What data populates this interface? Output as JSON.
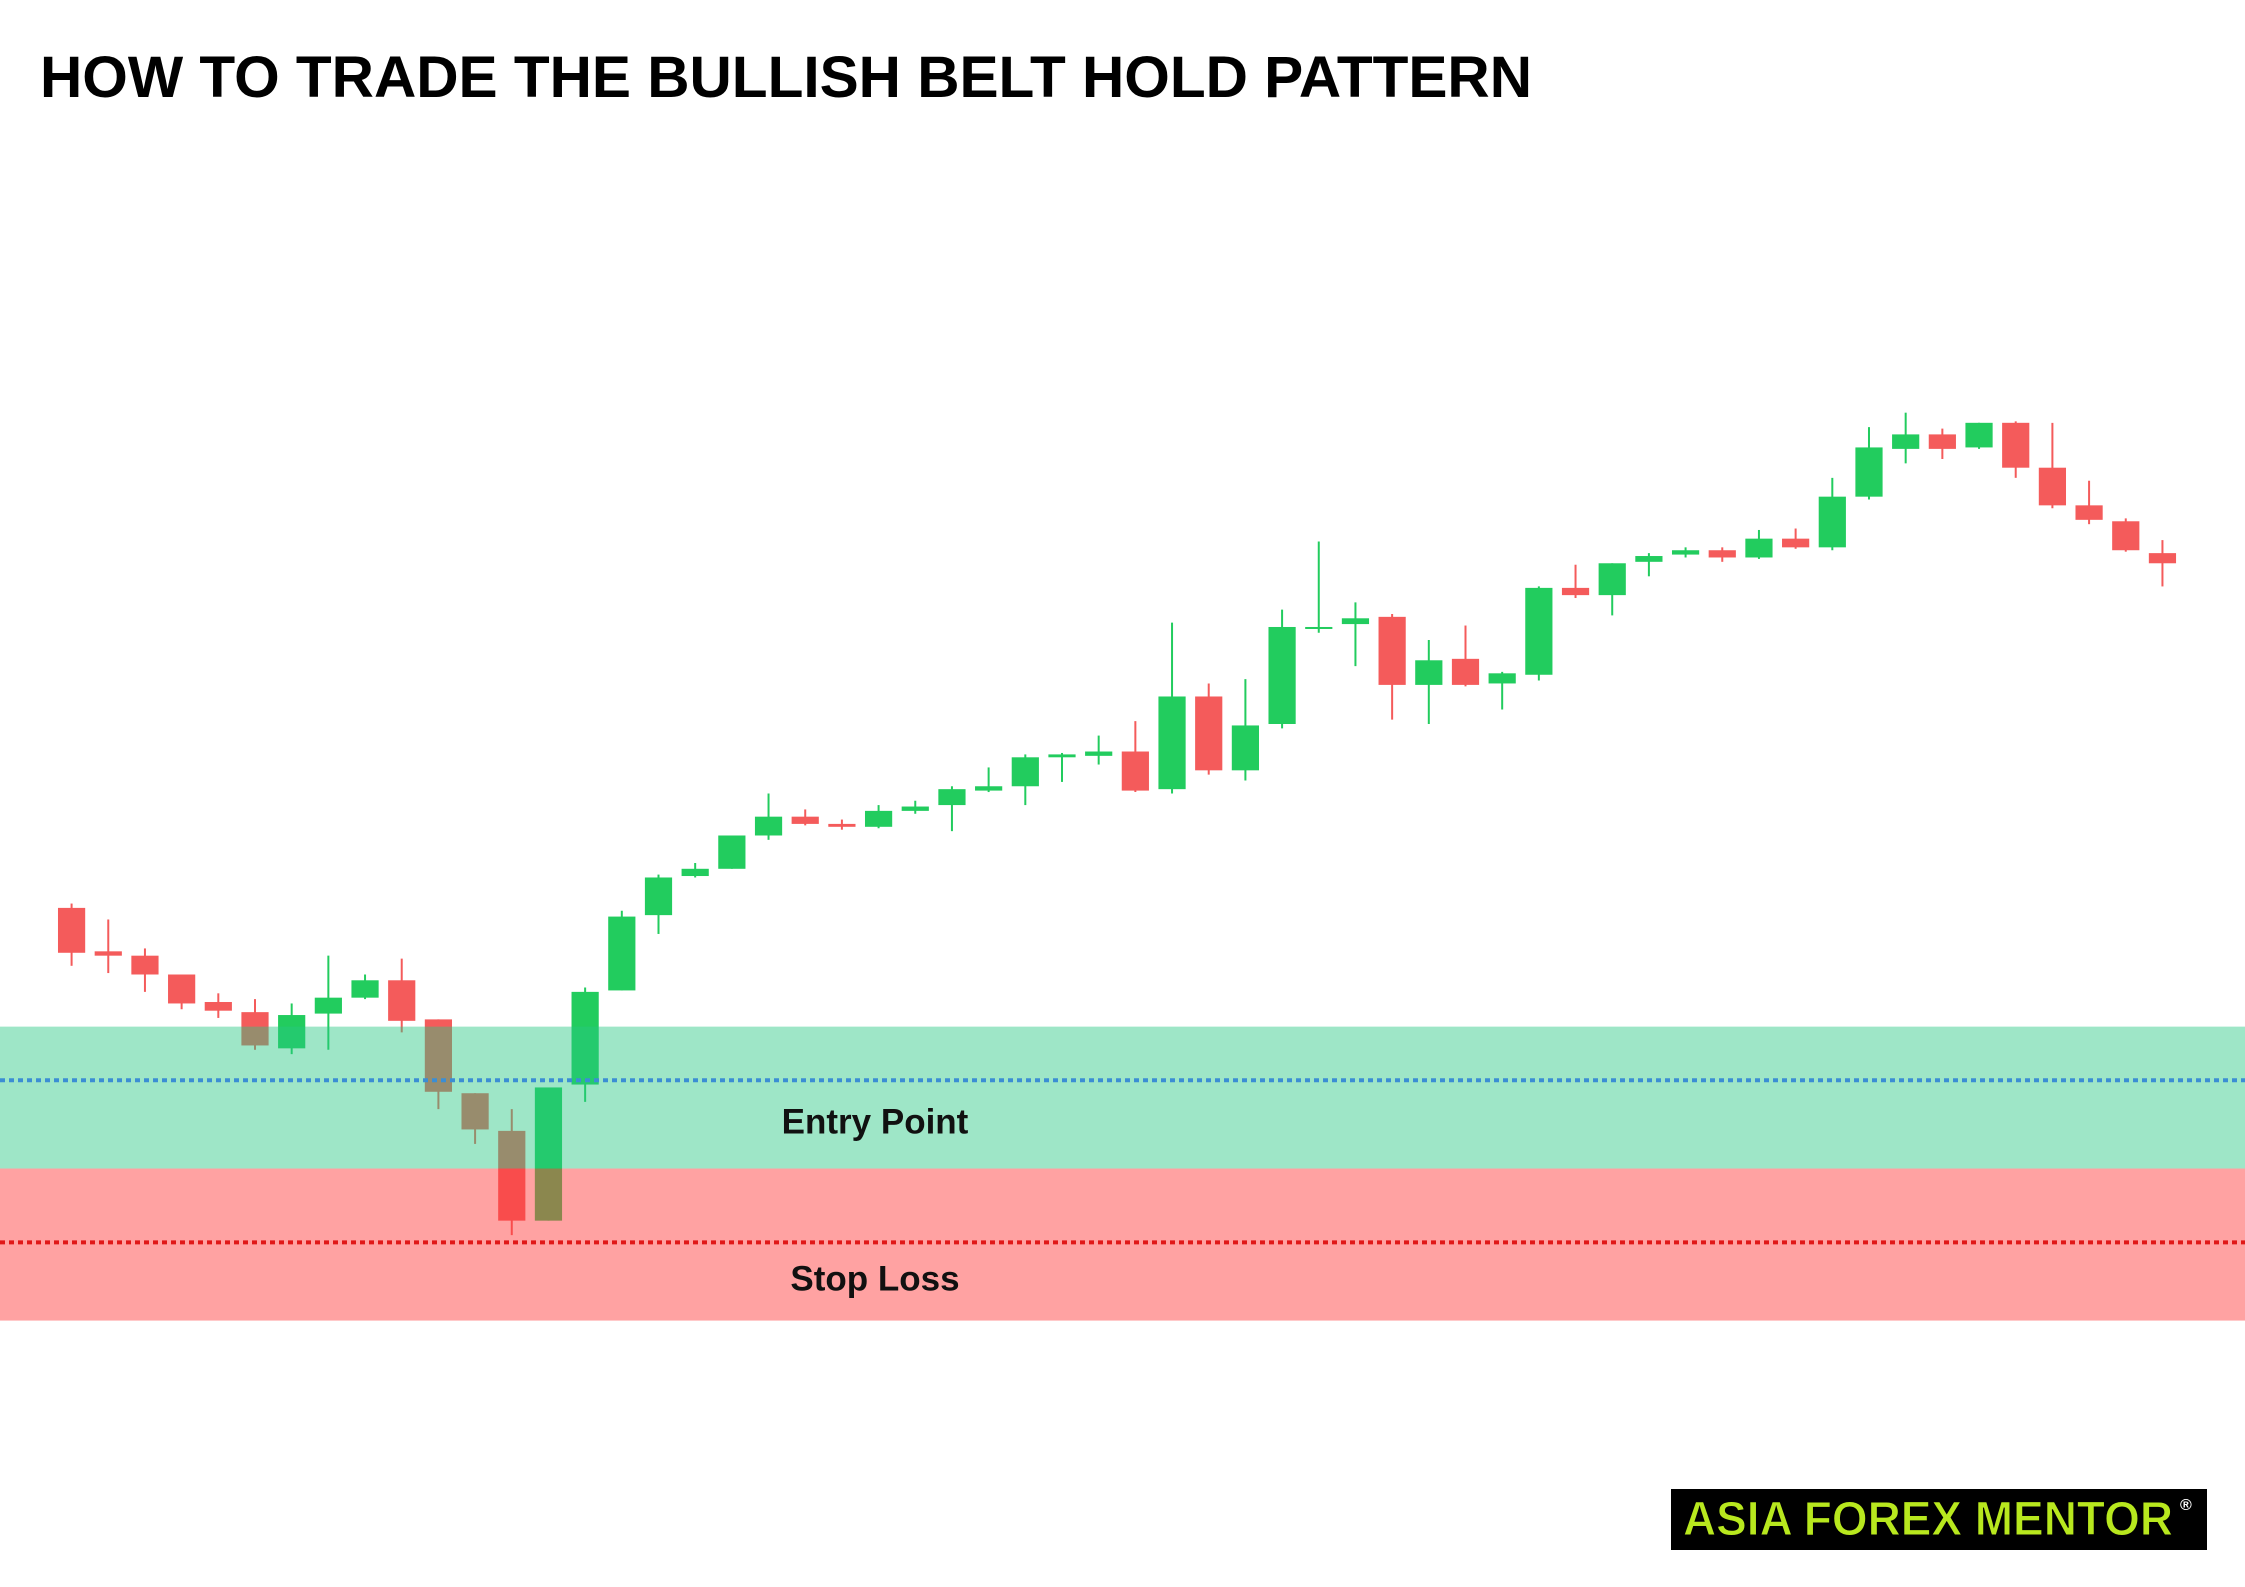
{
  "chart_data": {
    "type": "candlestick",
    "title": "HOW TO TRADE THE BULLISH BELT HOLD PATTERN",
    "ylim": [
      0,
      1096
    ],
    "up_color": "#22cc5e",
    "down_color": "#f45b5b",
    "open": [
      469,
      439,
      436,
      423,
      404,
      397,
      372,
      396,
      407,
      419,
      392,
      341,
      315,
      253,
      347,
      412,
      464,
      491,
      496,
      519,
      532,
      527,
      525,
      536,
      540,
      550,
      553,
      573,
      574,
      577,
      551,
      615,
      564,
      596,
      662,
      665,
      670,
      623,
      641,
      624,
      630,
      690,
      685,
      708,
      713,
      716,
      711,
      724,
      718,
      753,
      786,
      796,
      787,
      804,
      773,
      747,
      736,
      714
    ],
    "high": [
      472,
      461,
      441,
      423,
      410,
      406,
      403,
      436,
      423,
      434,
      392,
      341,
      330,
      345,
      414,
      467,
      492,
      500,
      519,
      548,
      537,
      530,
      540,
      543,
      553,
      566,
      575,
      576,
      588,
      598,
      666,
      624,
      627,
      675,
      722,
      680,
      672,
      654,
      664,
      632,
      691,
      706,
      707,
      714,
      718,
      718,
      730,
      731,
      766,
      801,
      811,
      800,
      804,
      805,
      804,
      764,
      738,
      723
    ],
    "low": [
      429,
      424,
      411,
      399,
      393,
      371,
      368,
      371,
      406,
      383,
      330,
      306,
      243,
      253,
      335,
      412,
      451,
      490,
      496,
      516,
      526,
      523,
      524,
      534,
      522,
      549,
      540,
      556,
      568,
      549,
      548,
      561,
      557,
      593,
      659,
      636,
      599,
      596,
      622,
      606,
      626,
      683,
      671,
      698,
      711,
      708,
      710,
      717,
      716,
      751,
      776,
      779,
      786,
      766,
      745,
      734,
      715,
      691
    ],
    "close": [
      438,
      436,
      423,
      403,
      398,
      374,
      395,
      407,
      419,
      391,
      342,
      316,
      253,
      345,
      411,
      463,
      490,
      496,
      519,
      532,
      527,
      525,
      536,
      539,
      551,
      553,
      573,
      575,
      577,
      550,
      615,
      564,
      595,
      663,
      663,
      669,
      623,
      640,
      623,
      631,
      690,
      685,
      707,
      712,
      716,
      711,
      724,
      718,
      753,
      787,
      796,
      786,
      804,
      773,
      747,
      737,
      716,
      707
    ],
    "zones": [
      {
        "label": "Entry Point",
        "range": [
          289,
          387
        ],
        "level": 350,
        "color": "rgba(40,200,130,0.45)",
        "line_color": "#3b8ed4"
      },
      {
        "label": "Stop Loss",
        "range": [
          184,
          289
        ],
        "level": 238,
        "color": "rgba(255,60,60,0.48)",
        "line_color": "#e01818"
      }
    ],
    "logo": "ASIA FOREX MENTOR",
    "logo_mark": "®"
  }
}
